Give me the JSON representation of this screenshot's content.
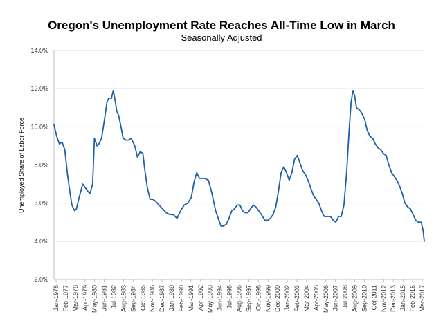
{
  "chart_data": {
    "type": "line",
    "title": "Oregon's Unemployment Rate Reaches All-Time Low in March",
    "subtitle": "Seasonally Adjusted",
    "ylabel": "Unemployed Share of Labor Force",
    "xlabel": "",
    "ylim": [
      2.0,
      14.0
    ],
    "yticks": [
      "2.0%",
      "4.0%",
      "6.0%",
      "8.0%",
      "10.0%",
      "12.0%",
      "14.0%"
    ],
    "xticks": [
      "Jan-1976",
      "Feb-1977",
      "Mar-1978",
      "Apr-1979",
      "May-1980",
      "Jun-1981",
      "Jul-1982",
      "Aug-1983",
      "Sep-1984",
      "Oct-1985",
      "Nov-1986",
      "Dec-1987",
      "Jan-1989",
      "Feb-1990",
      "Mar-1991",
      "Apr-1992",
      "May-1993",
      "Jun-1994",
      "Jul-1995",
      "Aug-1996",
      "Sep-1997",
      "Oct-1998",
      "Nov-1999",
      "Dec-2000",
      "Jan-2002",
      "Feb-2003",
      "Mar-2004",
      "Apr-2005",
      "May-2006",
      "Jun-2007",
      "Jul-2008",
      "Aug-2009",
      "Sep-2010",
      "Oct-2011",
      "Nov-2012",
      "Dec-2013",
      "Jan-2015",
      "Feb-2016",
      "Mar-2017"
    ],
    "grid": true,
    "legend": "none",
    "color": "#1f5fa8",
    "series": [
      {
        "x": [
          1976.0,
          1976.3,
          1976.6,
          1976.9,
          1977.2,
          1977.5,
          1977.8,
          1978.0,
          1978.3,
          1978.5,
          1978.8,
          1979.2,
          1979.5,
          1979.8,
          1980.0,
          1980.3,
          1980.5,
          1980.8,
          1981.0,
          1981.3,
          1981.6,
          1981.9,
          1982.1,
          1982.4,
          1982.6,
          1982.8,
          1983.0,
          1983.2,
          1983.5,
          1983.7,
          1984.0,
          1984.3,
          1984.6,
          1985.0,
          1985.3,
          1985.6,
          1985.9,
          1986.1,
          1986.4,
          1986.7,
          1987.0,
          1987.3,
          1987.7,
          1988.1,
          1988.5,
          1988.9,
          1989.3,
          1989.7,
          1990.1,
          1990.5,
          1990.9,
          1991.3,
          1991.6,
          1991.9,
          1992.2,
          1992.5,
          1992.8,
          1993.2,
          1993.6,
          1994.0,
          1994.3,
          1994.6,
          1994.9,
          1995.2,
          1995.5,
          1995.8,
          1996.1,
          1996.4,
          1996.7,
          1997.0,
          1997.3,
          1997.6,
          1997.9,
          1998.2,
          1998.5,
          1998.8,
          1999.1,
          1999.5,
          1999.8,
          2000.1,
          2000.4,
          2000.7,
          2001.0,
          2001.3,
          2001.6,
          2001.9,
          2002.2,
          2002.5,
          2002.8,
          2003.1,
          2003.4,
          2003.7,
          2004.0,
          2004.3,
          2004.6,
          2004.9,
          2005.2,
          2005.5,
          2005.8,
          2006.1,
          2006.5,
          2006.8,
          2007.1,
          2007.4,
          2007.7,
          2008.0,
          2008.3,
          2008.6,
          2008.9,
          2009.1,
          2009.3,
          2009.5,
          2009.7,
          2010.0,
          2010.3,
          2010.6,
          2010.9,
          2011.2,
          2011.5,
          2011.8,
          2012.1,
          2012.4,
          2012.7,
          2013.0,
          2013.3,
          2013.6,
          2013.9,
          2014.2,
          2014.5,
          2014.8,
          2015.1,
          2015.4,
          2015.7,
          2016.0,
          2016.3,
          2016.6,
          2016.9,
          2017.1,
          2017.25
        ],
        "values": [
          10.1,
          9.5,
          9.1,
          9.2,
          8.8,
          7.5,
          6.5,
          5.9,
          5.6,
          5.7,
          6.3,
          7.0,
          6.8,
          6.6,
          6.5,
          7.0,
          9.4,
          9.0,
          9.1,
          9.4,
          10.3,
          11.3,
          11.5,
          11.5,
          11.9,
          11.4,
          10.8,
          10.6,
          9.9,
          9.4,
          9.3,
          9.3,
          9.4,
          9.0,
          8.4,
          8.7,
          8.6,
          7.8,
          6.8,
          6.2,
          6.2,
          6.1,
          5.9,
          5.7,
          5.5,
          5.4,
          5.4,
          5.2,
          5.6,
          5.9,
          6.0,
          6.3,
          7.1,
          7.6,
          7.3,
          7.3,
          7.3,
          7.2,
          6.5,
          5.6,
          5.2,
          4.8,
          4.8,
          4.9,
          5.2,
          5.6,
          5.7,
          5.9,
          5.9,
          5.6,
          5.5,
          5.5,
          5.7,
          5.9,
          5.8,
          5.6,
          5.4,
          5.1,
          5.1,
          5.2,
          5.4,
          5.8,
          6.6,
          7.6,
          7.9,
          7.6,
          7.2,
          7.6,
          8.3,
          8.5,
          8.1,
          7.7,
          7.5,
          7.2,
          6.8,
          6.4,
          6.2,
          6.0,
          5.6,
          5.3,
          5.3,
          5.3,
          5.1,
          5.0,
          5.3,
          5.3,
          5.9,
          7.6,
          10.0,
          11.3,
          11.9,
          11.6,
          11.0,
          10.9,
          10.7,
          10.4,
          9.8,
          9.5,
          9.4,
          9.1,
          8.9,
          8.8,
          8.6,
          8.5,
          8.0,
          7.6,
          7.4,
          7.2,
          6.9,
          6.5,
          6.0,
          5.8,
          5.7,
          5.4,
          5.1,
          5.0,
          5.0,
          4.6,
          4.0
        ]
      }
    ]
  }
}
